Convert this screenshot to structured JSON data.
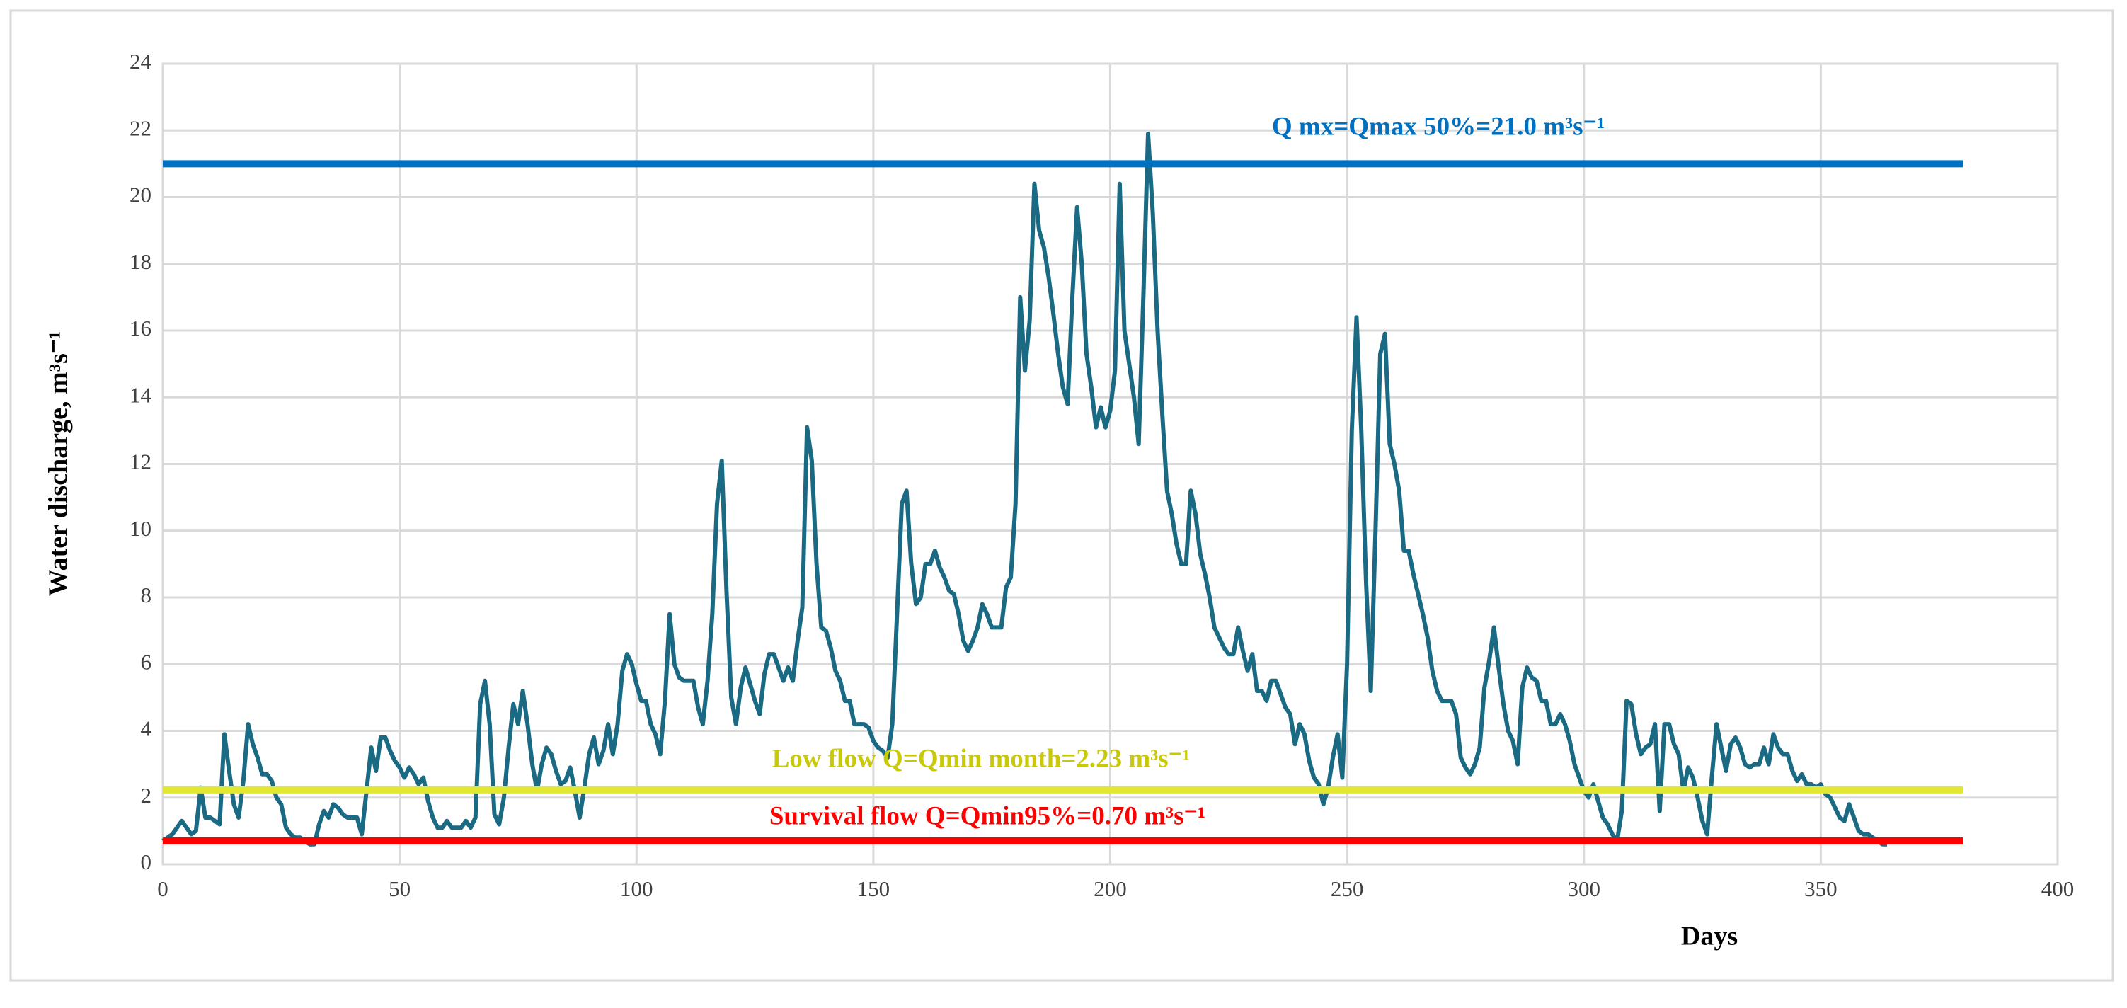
{
  "chart_data": {
    "type": "line",
    "x_label": "Days",
    "y_label": "Water discharge, m³s⁻¹",
    "xlim": [
      0,
      400
    ],
    "xticks": [
      0,
      50,
      100,
      150,
      200,
      250,
      300,
      350,
      400
    ],
    "ylim": [
      0,
      24
    ],
    "yticks": [
      0,
      2,
      4,
      6,
      8,
      10,
      12,
      14,
      16,
      18,
      20,
      22,
      24
    ],
    "grid": true,
    "x": [
      0,
      1,
      2,
      3,
      4,
      5,
      6,
      7,
      8,
      9,
      10,
      11,
      12,
      13,
      14,
      15,
      16,
      17,
      18,
      19,
      20,
      21,
      22,
      23,
      24,
      25,
      26,
      27,
      28,
      29,
      30,
      31,
      32,
      33,
      34,
      35,
      36,
      37,
      38,
      39,
      40,
      41,
      42,
      43,
      44,
      45,
      46,
      47,
      48,
      49,
      50,
      51,
      52,
      53,
      54,
      55,
      56,
      57,
      58,
      59,
      60,
      61,
      62,
      63,
      64,
      65,
      66,
      67,
      68,
      69,
      70,
      71,
      72,
      73,
      74,
      75,
      76,
      77,
      78,
      79,
      80,
      81,
      82,
      83,
      84,
      85,
      86,
      87,
      88,
      89,
      90,
      91,
      92,
      93,
      94,
      95,
      96,
      97,
      98,
      99,
      100,
      101,
      102,
      103,
      104,
      105,
      106,
      107,
      108,
      109,
      110,
      111,
      112,
      113,
      114,
      115,
      116,
      117,
      118,
      119,
      120,
      121,
      122,
      123,
      124,
      125,
      126,
      127,
      128,
      129,
      130,
      131,
      132,
      133,
      134,
      135,
      136,
      137,
      138,
      139,
      140,
      141,
      142,
      143,
      144,
      145,
      146,
      147,
      148,
      149,
      150,
      151,
      152,
      153,
      154,
      155,
      156,
      157,
      158,
      159,
      160,
      161,
      162,
      163,
      164,
      165,
      166,
      167,
      168,
      169,
      170,
      171,
      172,
      173,
      174,
      175,
      176,
      177,
      178,
      179,
      180,
      181,
      182,
      183,
      184,
      185,
      186,
      187,
      188,
      189,
      190,
      191,
      192,
      193,
      194,
      195,
      196,
      197,
      198,
      199,
      200,
      201,
      202,
      203,
      204,
      205,
      206,
      207,
      208,
      209,
      210,
      211,
      212,
      213,
      214,
      215,
      216,
      217,
      218,
      219,
      220,
      221,
      222,
      223,
      224,
      225,
      226,
      227,
      228,
      229,
      230,
      231,
      232,
      233,
      234,
      235,
      236,
      237,
      238,
      239,
      240,
      241,
      242,
      243,
      244,
      245,
      246,
      247,
      248,
      249,
      250,
      251,
      252,
      253,
      254,
      255,
      256,
      257,
      258,
      259,
      260,
      261,
      262,
      263,
      264,
      265,
      266,
      267,
      268,
      269,
      270,
      271,
      272,
      273,
      274,
      275,
      276,
      277,
      278,
      279,
      280,
      281,
      282,
      283,
      284,
      285,
      286,
      287,
      288,
      289,
      290,
      291,
      292,
      293,
      294,
      295,
      296,
      297,
      298,
      299,
      300,
      301,
      302,
      303,
      304,
      305,
      306,
      307,
      308,
      309,
      310,
      311,
      312,
      313,
      314,
      315,
      316,
      317,
      318,
      319,
      320,
      321,
      322,
      323,
      324,
      325,
      326,
      327,
      328,
      329,
      330,
      331,
      332,
      333,
      334,
      335,
      336,
      337,
      338,
      339,
      340,
      341,
      342,
      343,
      344,
      345,
      346,
      347,
      348,
      349,
      350,
      351,
      352,
      353,
      354,
      355,
      356,
      357,
      358,
      359,
      360,
      361,
      362,
      363,
      364
    ],
    "series": [
      {
        "color": "#1b6a84",
        "values": [
          0.7,
          0.8,
          0.9,
          1.1,
          1.3,
          1.1,
          0.9,
          1.0,
          2.3,
          1.4,
          1.4,
          1.3,
          1.2,
          3.9,
          2.8,
          1.8,
          1.4,
          2.5,
          4.2,
          3.6,
          3.2,
          2.7,
          2.7,
          2.5,
          2.0,
          1.8,
          1.1,
          0.9,
          0.8,
          0.8,
          0.7,
          0.6,
          0.6,
          1.2,
          1.6,
          1.4,
          1.8,
          1.7,
          1.5,
          1.4,
          1.4,
          1.4,
          0.9,
          2.2,
          3.5,
          2.8,
          3.8,
          3.8,
          3.4,
          3.1,
          2.9,
          2.6,
          2.9,
          2.7,
          2.4,
          2.6,
          1.9,
          1.4,
          1.1,
          1.1,
          1.3,
          1.1,
          1.1,
          1.1,
          1.3,
          1.1,
          1.4,
          4.8,
          5.5,
          4.2,
          1.5,
          1.2,
          2.0,
          3.5,
          4.8,
          4.2,
          5.2,
          4.2,
          3.0,
          2.2,
          3.0,
          3.5,
          3.3,
          2.8,
          2.4,
          2.5,
          2.9,
          2.2,
          1.4,
          2.3,
          3.3,
          3.8,
          3.0,
          3.4,
          4.2,
          3.3,
          4.2,
          5.8,
          6.3,
          6.0,
          5.4,
          4.9,
          4.9,
          4.2,
          3.9,
          3.3,
          4.9,
          7.5,
          6.0,
          5.6,
          5.5,
          5.5,
          5.5,
          4.7,
          4.2,
          5.5,
          7.5,
          10.8,
          12.1,
          8.2,
          5.0,
          4.2,
          5.3,
          5.9,
          5.4,
          4.9,
          4.5,
          5.7,
          6.3,
          6.3,
          5.9,
          5.5,
          5.9,
          5.5,
          6.7,
          7.7,
          13.1,
          12.1,
          9.0,
          7.1,
          7.0,
          6.5,
          5.8,
          5.5,
          4.9,
          4.9,
          4.2,
          4.2,
          4.2,
          4.1,
          3.7,
          3.5,
          3.4,
          3.2,
          4.2,
          7.5,
          10.8,
          11.2,
          9.0,
          7.8,
          8.0,
          9.0,
          9.0,
          9.4,
          8.9,
          8.6,
          8.2,
          8.1,
          7.5,
          6.7,
          6.4,
          6.7,
          7.1,
          7.8,
          7.5,
          7.1,
          7.1,
          7.1,
          8.3,
          8.6,
          10.8,
          17.0,
          14.8,
          16.3,
          20.4,
          19.0,
          18.5,
          17.6,
          16.5,
          15.3,
          14.3,
          13.8,
          17.0,
          19.7,
          18.0,
          15.3,
          14.3,
          13.1,
          13.7,
          13.1,
          13.6,
          14.8,
          20.4,
          16.0,
          15.0,
          14.0,
          12.6,
          17.0,
          21.9,
          19.5,
          16.0,
          13.5,
          11.2,
          10.5,
          9.6,
          9.0,
          9.0,
          11.2,
          10.5,
          9.3,
          8.7,
          8.0,
          7.1,
          6.8,
          6.5,
          6.3,
          6.3,
          7.1,
          6.4,
          5.8,
          6.3,
          5.2,
          5.2,
          4.9,
          5.5,
          5.5,
          5.1,
          4.7,
          4.5,
          3.6,
          4.2,
          3.9,
          3.1,
          2.6,
          2.4,
          1.8,
          2.3,
          3.2,
          3.9,
          2.6,
          6.0,
          13.0,
          16.4,
          13.0,
          8.5,
          5.2,
          10.0,
          15.3,
          15.9,
          12.6,
          12.0,
          11.2,
          9.4,
          9.4,
          8.7,
          8.1,
          7.5,
          6.8,
          5.8,
          5.2,
          4.9,
          4.9,
          4.9,
          4.5,
          3.2,
          2.9,
          2.7,
          3.0,
          3.5,
          5.3,
          6.1,
          7.1,
          5.9,
          4.8,
          4.0,
          3.7,
          3.0,
          5.3,
          5.9,
          5.6,
          5.5,
          4.9,
          4.9,
          4.2,
          4.2,
          4.5,
          4.2,
          3.7,
          3.0,
          2.6,
          2.2,
          2.0,
          2.4,
          1.9,
          1.4,
          1.2,
          0.9,
          0.7,
          1.6,
          4.9,
          4.8,
          3.9,
          3.3,
          3.5,
          3.6,
          4.2,
          1.6,
          4.2,
          4.2,
          3.6,
          3.3,
          2.2,
          2.9,
          2.6,
          2.0,
          1.3,
          0.9,
          2.6,
          4.2,
          3.5,
          2.8,
          3.6,
          3.8,
          3.5,
          3.0,
          2.9,
          3.0,
          3.0,
          3.5,
          3.0,
          3.9,
          3.5,
          3.3,
          3.3,
          2.8,
          2.5,
          2.7,
          2.4,
          2.4,
          2.3,
          2.4,
          2.1,
          2.0,
          1.7,
          1.4,
          1.3,
          1.8,
          1.4,
          1.0,
          0.9,
          0.9,
          0.8,
          0.7,
          0.6,
          0.6
        ]
      }
    ],
    "reference_lines": [
      {
        "label": "Q mx=Qmax 50%=21.0 m³s⁻¹",
        "value": 21.0,
        "color": "#0070c0",
        "label_color": "#0070c0",
        "x_range": [
          0,
          380
        ]
      },
      {
        "label": "Low flow Q=Qmin month=2.23 m³s⁻¹",
        "value": 2.23,
        "color": "#e2e832",
        "label_color": "#c9c90a",
        "x_range": [
          0,
          380
        ]
      },
      {
        "label": "Survival flow Q=Qmin95%=0.70 m³s⁻¹",
        "value": 0.7,
        "color": "#ff0000",
        "label_color": "#ff0000",
        "x_range": [
          0,
          380
        ]
      }
    ]
  }
}
